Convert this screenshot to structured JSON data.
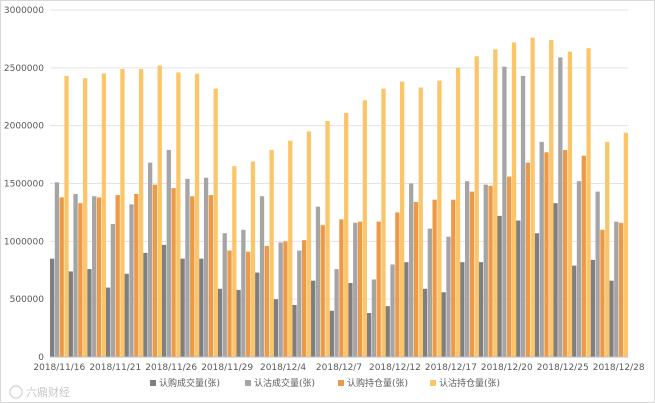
{
  "chart_data": {
    "type": "bar",
    "title": "",
    "xlabel": "",
    "ylabel": "",
    "ylim": [
      0,
      3000000
    ],
    "yticks": [
      0,
      500000,
      1000000,
      1500000,
      2000000,
      2500000,
      3000000
    ],
    "ytick_labels": [
      "0",
      "500000",
      "1000000",
      "1500000",
      "2000000",
      "2500000",
      "3000000"
    ],
    "grid": true,
    "legend_position": "bottom",
    "categories": [
      "2018/11/16",
      "2018/11/19",
      "2018/11/20",
      "2018/11/21",
      "2018/11/22",
      "2018/11/23",
      "2018/11/26",
      "2018/11/27",
      "2018/11/28",
      "2018/11/29",
      "2018/11/30",
      "2018/12/3",
      "2018/12/4",
      "2018/12/5",
      "2018/12/6",
      "2018/12/7",
      "2018/12/10",
      "2018/12/11",
      "2018/12/12",
      "2018/12/13",
      "2018/12/14",
      "2018/12/17",
      "2018/12/18",
      "2018/12/19",
      "2018/12/20",
      "2018/12/21",
      "2018/12/24",
      "2018/12/25",
      "2018/12/26",
      "2018/12/27",
      "2018/12/28"
    ],
    "xtick_labels": [
      "2018/11/16",
      "",
      "",
      "2018/11/21",
      "",
      "",
      "2018/11/26",
      "",
      "",
      "2018/11/29",
      "",
      "",
      "2018/12/4",
      "",
      "",
      "2018/12/7",
      "",
      "",
      "2018/12/12",
      "",
      "",
      "2018/12/17",
      "",
      "",
      "2018/12/20",
      "",
      "",
      "2018/12/25",
      "",
      "",
      "2018/12/28"
    ],
    "series": [
      {
        "name": "认购成交量(张)",
        "color": "#7f7f7f",
        "values": [
          850000,
          740000,
          760000,
          600000,
          720000,
          900000,
          970000,
          850000,
          850000,
          590000,
          580000,
          730000,
          500000,
          450000,
          660000,
          400000,
          640000,
          380000,
          440000,
          820000,
          590000,
          560000,
          820000,
          820000,
          1220000,
          1180000,
          1070000,
          1330000,
          790000,
          840000,
          660000
        ]
      },
      {
        "name": "认沽成交量(张)",
        "color": "#a5a5a5",
        "values": [
          1510000,
          1410000,
          1390000,
          1150000,
          1320000,
          1680000,
          1790000,
          1540000,
          1550000,
          1070000,
          1100000,
          1390000,
          990000,
          920000,
          1300000,
          760000,
          1160000,
          670000,
          800000,
          1500000,
          1110000,
          1040000,
          1520000,
          1490000,
          2510000,
          2430000,
          1860000,
          2590000,
          1520000,
          1430000,
          1170000
        ]
      },
      {
        "name": "认购持仓量(张)",
        "color": "#ed9a48",
        "values": [
          1380000,
          1330000,
          1380000,
          1400000,
          1410000,
          1490000,
          1460000,
          1390000,
          1400000,
          920000,
          910000,
          960000,
          1000000,
          1010000,
          1140000,
          1190000,
          1170000,
          1170000,
          1250000,
          1340000,
          1360000,
          1360000,
          1430000,
          1480000,
          1560000,
          1680000,
          1770000,
          1790000,
          1740000,
          1100000,
          1160000
        ]
      },
      {
        "name": "认沽持仓量(张)",
        "color": "#fbc66a",
        "values": [
          2430000,
          2410000,
          2450000,
          2490000,
          2490000,
          2520000,
          2460000,
          2450000,
          2320000,
          1650000,
          1690000,
          1790000,
          1870000,
          1950000,
          2040000,
          2110000,
          2220000,
          2320000,
          2380000,
          2330000,
          2390000,
          2500000,
          2600000,
          2660000,
          2720000,
          2760000,
          2740000,
          2640000,
          2670000,
          1860000,
          1940000
        ]
      }
    ]
  },
  "watermark": {
    "text": "六鼎财经"
  }
}
